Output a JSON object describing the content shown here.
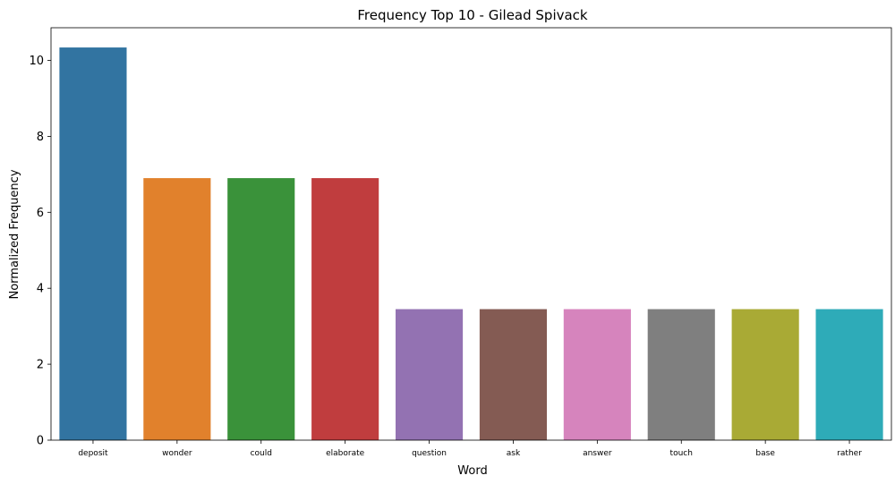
{
  "chart_data": {
    "type": "bar",
    "title": "Frequency Top 10 - Gilead Spivack",
    "xlabel": "Word",
    "ylabel": "Normalized Frequency",
    "categories": [
      "deposit",
      "wonder",
      "could",
      "elaborate",
      "question",
      "ask",
      "answer",
      "touch",
      "base",
      "rather"
    ],
    "values": [
      10.34,
      6.9,
      6.9,
      6.9,
      3.45,
      3.45,
      3.45,
      3.45,
      3.45,
      3.45
    ],
    "colors": [
      "#3274a1",
      "#e1812c",
      "#3a923a",
      "#c03d3e",
      "#9372b2",
      "#845b53",
      "#d684bd",
      "#7f7f7f",
      "#a9aa35",
      "#2eabb8"
    ],
    "ylim": [
      0,
      10.86
    ],
    "yticks": [
      0,
      2,
      4,
      6,
      8,
      10
    ],
    "grid": false,
    "legend": "none"
  }
}
